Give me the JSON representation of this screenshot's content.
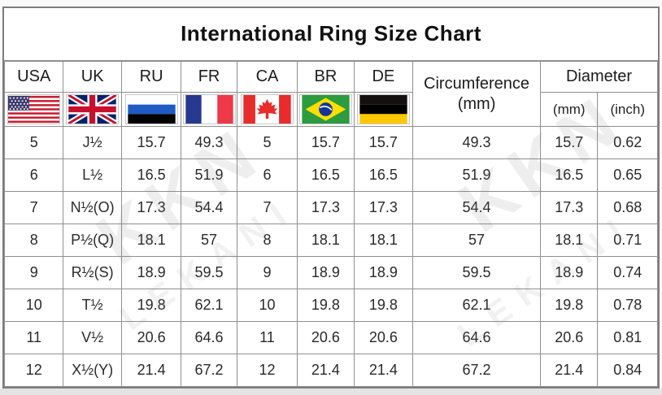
{
  "title": "International Ring Size Chart",
  "header": {
    "countries": [
      {
        "label": "USA",
        "flag": "usa-flag-icon"
      },
      {
        "label": "UK",
        "flag": "uk-flag-icon"
      },
      {
        "label": "RU",
        "flag": "russia-flag-icon"
      },
      {
        "label": "FR",
        "flag": "france-flag-icon"
      },
      {
        "label": "CA",
        "flag": "canada-flag-icon"
      },
      {
        "label": "BR",
        "flag": "brazil-flag-icon"
      },
      {
        "label": "DE",
        "flag": "germany-flag-icon"
      }
    ],
    "circumference_line1": "Circumference",
    "circumference_line2": "(mm)",
    "diameter": "Diameter",
    "diameter_mm": "(mm)",
    "diameter_inch": "(inch)"
  },
  "column_order": [
    "usa",
    "uk",
    "ru",
    "fr",
    "ca",
    "br",
    "de",
    "circ",
    "dmm",
    "dinch"
  ],
  "rows": [
    {
      "usa": "5",
      "uk": "J½",
      "ru": "15.7",
      "fr": "49.3",
      "ca": "5",
      "br": "15.7",
      "de": "15.7",
      "circ": "49.3",
      "dmm": "15.7",
      "dinch": "0.62"
    },
    {
      "usa": "6",
      "uk": "L½",
      "ru": "16.5",
      "fr": "51.9",
      "ca": "6",
      "br": "16.5",
      "de": "16.5",
      "circ": "51.9",
      "dmm": "16.5",
      "dinch": "0.65"
    },
    {
      "usa": "7",
      "uk": "N½(O)",
      "ru": "17.3",
      "fr": "54.4",
      "ca": "7",
      "br": "17.3",
      "de": "17.3",
      "circ": "54.4",
      "dmm": "17.3",
      "dinch": "0.68"
    },
    {
      "usa": "8",
      "uk": "P½(Q)",
      "ru": "18.1",
      "fr": "57",
      "ca": "8",
      "br": "18.1",
      "de": "18.1",
      "circ": "57",
      "dmm": "18.1",
      "dinch": "0.71"
    },
    {
      "usa": "9",
      "uk": "R½(S)",
      "ru": "18.9",
      "fr": "59.5",
      "ca": "9",
      "br": "18.9",
      "de": "18.9",
      "circ": "59.5",
      "dmm": "18.9",
      "dinch": "0.74"
    },
    {
      "usa": "10",
      "uk": "T½",
      "ru": "19.8",
      "fr": "62.1",
      "ca": "10",
      "br": "19.8",
      "de": "19.8",
      "circ": "62.1",
      "dmm": "19.8",
      "dinch": "0.78"
    },
    {
      "usa": "11",
      "uk": "V½",
      "ru": "20.6",
      "fr": "64.6",
      "ca": "11",
      "br": "20.6",
      "de": "20.6",
      "circ": "64.6",
      "dmm": "20.6",
      "dinch": "0.81"
    },
    {
      "usa": "12",
      "uk": "X½(Y)",
      "ru": "21.4",
      "fr": "67.2",
      "ca": "12",
      "br": "21.4",
      "de": "21.4",
      "circ": "67.2",
      "dmm": "21.4",
      "dinch": "0.84"
    }
  ],
  "watermark": {
    "text1": "KKN",
    "text2": "LEKANI"
  },
  "colors": {
    "grid": "#8f8f8f",
    "outer_border": "#7d7d7d",
    "text": "#2a2a2a",
    "background": "#ffffff",
    "bottom_strip": "#e4e4e4"
  },
  "chart_data": {
    "type": "table",
    "title": "International Ring Size Chart",
    "columns": [
      "USA",
      "UK",
      "RU",
      "FR",
      "CA",
      "BR",
      "DE",
      "Circumference (mm)",
      "Diameter (mm)",
      "Diameter (inch)"
    ],
    "rows": [
      [
        "5",
        "J½",
        "15.7",
        "49.3",
        "5",
        "15.7",
        "15.7",
        "49.3",
        "15.7",
        "0.62"
      ],
      [
        "6",
        "L½",
        "16.5",
        "51.9",
        "6",
        "16.5",
        "16.5",
        "51.9",
        "16.5",
        "0.65"
      ],
      [
        "7",
        "N½(O)",
        "17.3",
        "54.4",
        "7",
        "17.3",
        "17.3",
        "54.4",
        "17.3",
        "0.68"
      ],
      [
        "8",
        "P½(Q)",
        "18.1",
        "57",
        "8",
        "18.1",
        "18.1",
        "57",
        "18.1",
        "0.71"
      ],
      [
        "9",
        "R½(S)",
        "18.9",
        "59.5",
        "9",
        "18.9",
        "18.9",
        "59.5",
        "18.9",
        "0.74"
      ],
      [
        "10",
        "T½",
        "19.8",
        "62.1",
        "10",
        "19.8",
        "19.8",
        "62.1",
        "19.8",
        "0.78"
      ],
      [
        "11",
        "V½",
        "20.6",
        "64.6",
        "11",
        "20.6",
        "20.6",
        "64.6",
        "20.6",
        "0.81"
      ],
      [
        "12",
        "X½(Y)",
        "21.4",
        "67.2",
        "12",
        "21.4",
        "21.4",
        "67.2",
        "21.4",
        "0.84"
      ]
    ]
  }
}
